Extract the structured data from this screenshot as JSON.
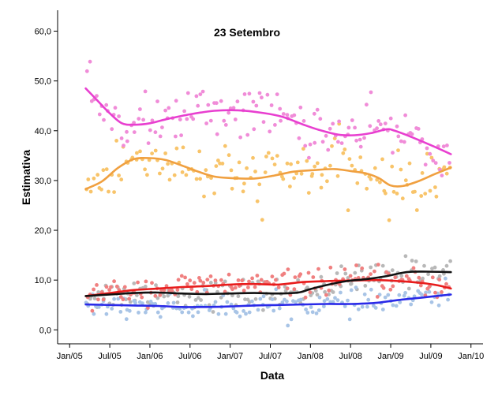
{
  "chart_data": {
    "type": "scatter",
    "title": "23 Setembro",
    "xlabel": "Data",
    "ylabel": "Estimativa",
    "ylim": [
      -2.8,
      64.2
    ],
    "xlim": [
      -0.15,
      5.15
    ],
    "y_ticks": [
      {
        "value": 0,
        "label": "0,0"
      },
      {
        "value": 10,
        "label": "10,0"
      },
      {
        "value": 20,
        "label": "20,0"
      },
      {
        "value": 30,
        "label": "30,0"
      },
      {
        "value": 40,
        "label": "40,0"
      },
      {
        "value": 50,
        "label": "50,0"
      },
      {
        "value": 60,
        "label": "60,0"
      }
    ],
    "x_ticks": [
      {
        "value": 0,
        "label": "Jan/05"
      },
      {
        "value": 0.5,
        "label": "Jul/05"
      },
      {
        "value": 1,
        "label": "Jan/06"
      },
      {
        "value": 1.5,
        "label": "Jul/06"
      },
      {
        "value": 2,
        "label": "Jan/07"
      },
      {
        "value": 2.5,
        "label": "Jul/07"
      },
      {
        "value": 3,
        "label": "Jan/08"
      },
      {
        "value": 3.5,
        "label": "Jul/08"
      },
      {
        "value": 4,
        "label": "Jan/09"
      },
      {
        "value": 4.5,
        "label": "Jul/09"
      },
      {
        "value": 5,
        "label": "Jan/10"
      }
    ],
    "x_unit": "years since Jan/05",
    "series": [
      {
        "name": "pink",
        "line_color": "#e83fd0",
        "dot_color": "#f08cd8",
        "spread": 2.6,
        "trend": [
          [
            0.2,
            48.5
          ],
          [
            0.35,
            46
          ],
          [
            0.5,
            43.5
          ],
          [
            0.65,
            41.5
          ],
          [
            0.8,
            41.2
          ],
          [
            1.0,
            41.5
          ],
          [
            1.2,
            42.3
          ],
          [
            1.5,
            43.3
          ],
          [
            1.8,
            44.0
          ],
          [
            2.1,
            44.1
          ],
          [
            2.4,
            43.6
          ],
          [
            2.65,
            42.8
          ],
          [
            2.9,
            41.3
          ],
          [
            3.1,
            40.2
          ],
          [
            3.35,
            39.2
          ],
          [
            3.55,
            39.1
          ],
          [
            3.75,
            39.5
          ],
          [
            3.95,
            40.3
          ],
          [
            4.05,
            40.0
          ],
          [
            4.25,
            38.8
          ],
          [
            4.5,
            37.1
          ],
          [
            4.75,
            35.3
          ]
        ]
      },
      {
        "name": "orange",
        "line_color": "#f0a040",
        "dot_color": "#f8c46a",
        "spread": 3.0,
        "trend": [
          [
            0.2,
            28.3
          ],
          [
            0.4,
            29.8
          ],
          [
            0.6,
            32.5
          ],
          [
            0.8,
            34.3
          ],
          [
            1.0,
            34.5
          ],
          [
            1.2,
            34.1
          ],
          [
            1.4,
            33.0
          ],
          [
            1.6,
            31.8
          ],
          [
            1.8,
            30.8
          ],
          [
            2.0,
            30.5
          ],
          [
            2.3,
            30.4
          ],
          [
            2.55,
            31.0
          ],
          [
            2.8,
            31.8
          ],
          [
            3.05,
            32.1
          ],
          [
            3.3,
            32.3
          ],
          [
            3.5,
            31.9
          ],
          [
            3.7,
            31.4
          ],
          [
            3.85,
            30.5
          ],
          [
            4.0,
            29.0
          ],
          [
            4.15,
            28.9
          ],
          [
            4.35,
            29.9
          ],
          [
            4.55,
            31.3
          ],
          [
            4.75,
            32.6
          ]
        ]
      },
      {
        "name": "red",
        "line_color": "#e81c1c",
        "dot_color": "#f08080",
        "spread": 1.3,
        "trend": [
          [
            0.2,
            6.8
          ],
          [
            0.5,
            7.4
          ],
          [
            0.8,
            8.0
          ],
          [
            1.1,
            8.3
          ],
          [
            1.4,
            8.6
          ],
          [
            1.7,
            8.8
          ],
          [
            2.0,
            9.1
          ],
          [
            2.3,
            9.2
          ],
          [
            2.6,
            9.1
          ],
          [
            2.9,
            9.6
          ],
          [
            3.2,
            9.8
          ],
          [
            3.5,
            9.9
          ],
          [
            3.8,
            10.0
          ],
          [
            4.1,
            9.8
          ],
          [
            4.4,
            9.4
          ],
          [
            4.6,
            8.9
          ],
          [
            4.75,
            8.3
          ]
        ]
      },
      {
        "name": "black",
        "line_color": "#111111",
        "dot_color": "#b8b8b8",
        "spread": 1.5,
        "trend": [
          [
            0.2,
            6.8
          ],
          [
            0.5,
            7.1
          ],
          [
            0.8,
            7.4
          ],
          [
            1.1,
            7.5
          ],
          [
            1.4,
            7.3
          ],
          [
            1.7,
            7.2
          ],
          [
            2.0,
            7.3
          ],
          [
            2.3,
            7.4
          ],
          [
            2.6,
            7.3
          ],
          [
            2.85,
            7.5
          ],
          [
            3.0,
            8.2
          ],
          [
            3.2,
            9.0
          ],
          [
            3.45,
            9.8
          ],
          [
            3.7,
            10.2
          ],
          [
            3.95,
            10.8
          ],
          [
            4.2,
            11.6
          ],
          [
            4.45,
            11.7
          ],
          [
            4.75,
            11.6
          ]
        ]
      },
      {
        "name": "blue",
        "line_color": "#2a2ae8",
        "dot_color": "#a8c4e6",
        "spread": 1.2,
        "trend": [
          [
            0.2,
            5.1
          ],
          [
            0.5,
            5.0
          ],
          [
            0.8,
            4.9
          ],
          [
            1.1,
            4.8
          ],
          [
            1.4,
            4.6
          ],
          [
            1.7,
            4.6
          ],
          [
            2.0,
            4.7
          ],
          [
            2.3,
            4.9
          ],
          [
            2.6,
            5.0
          ],
          [
            2.9,
            5.1
          ],
          [
            3.2,
            5.2
          ],
          [
            3.5,
            5.2
          ],
          [
            3.8,
            5.4
          ],
          [
            4.1,
            6.0
          ],
          [
            4.4,
            6.5
          ],
          [
            4.75,
            7.1
          ]
        ]
      }
    ]
  }
}
